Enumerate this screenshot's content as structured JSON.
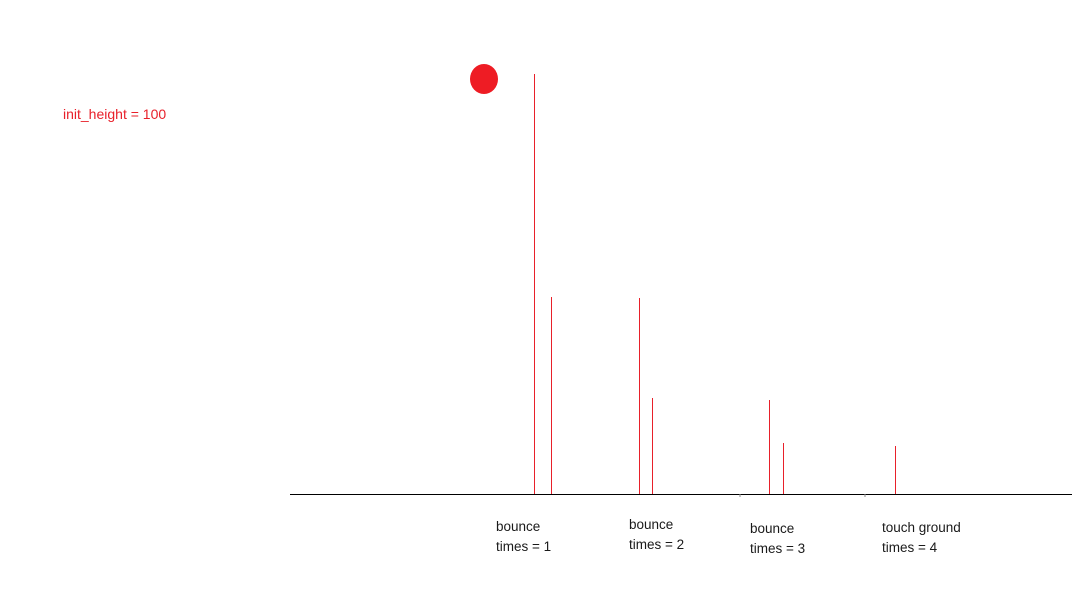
{
  "init_label": "init_height = 100",
  "colors": {
    "ball": "#ee1c24",
    "bars": "#e8202a",
    "ground": "#000000",
    "text": "#1a1a1a"
  },
  "captions": [
    {
      "line1": "bounce",
      "line2": "times = 1"
    },
    {
      "line1": "bounce",
      "line2": "times = 2"
    },
    {
      "line1": "bounce",
      "line2": "times = 3"
    },
    {
      "line1": "touch ground",
      "line2": "times = 4"
    }
  ]
}
